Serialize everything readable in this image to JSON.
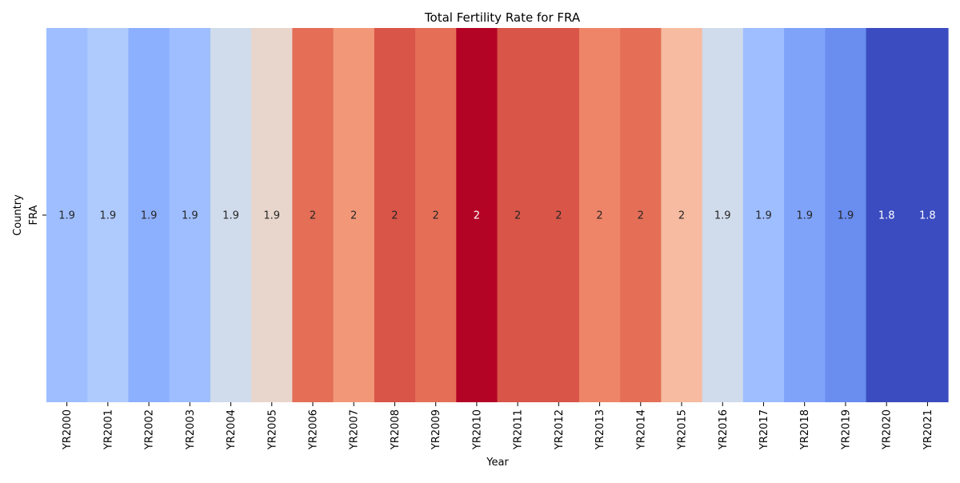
{
  "chart_data": {
    "type": "heatmap",
    "title": "Total Fertility Rate for FRA",
    "xlabel": "Year",
    "ylabel": "Country",
    "rows": [
      "FRA"
    ],
    "categories": [
      "YR2000",
      "YR2001",
      "YR2002",
      "YR2003",
      "YR2004",
      "YR2005",
      "YR2006",
      "YR2007",
      "YR2008",
      "YR2009",
      "YR2010",
      "YR2011",
      "YR2012",
      "YR2013",
      "YR2014",
      "YR2015",
      "YR2016",
      "YR2017",
      "YR2018",
      "YR2019",
      "YR2020",
      "YR2021"
    ],
    "labels": [
      "1.9",
      "1.9",
      "1.9",
      "1.9",
      "1.9",
      "1.9",
      "2",
      "2",
      "2",
      "2",
      "2",
      "2",
      "2",
      "2",
      "2",
      "2",
      "1.9",
      "1.9",
      "1.9",
      "1.9",
      "1.8",
      "1.8"
    ],
    "cell_colors": [
      "#9ebeff",
      "#afcafc",
      "#8db0fe",
      "#9ebeff",
      "#d0dbec",
      "#e8d6cc",
      "#e46e56",
      "#f29879",
      "#d95548",
      "#e46e56",
      "#b40426",
      "#d95548",
      "#d95548",
      "#ee8468",
      "#e46e56",
      "#f6bba0",
      "#d0dbec",
      "#9ebeff",
      "#80a3fa",
      "#6a8df0",
      "#3b4cc0",
      "#3b4cc0"
    ],
    "colormap": "coolwarm",
    "colorbar": false,
    "grid": false
  }
}
